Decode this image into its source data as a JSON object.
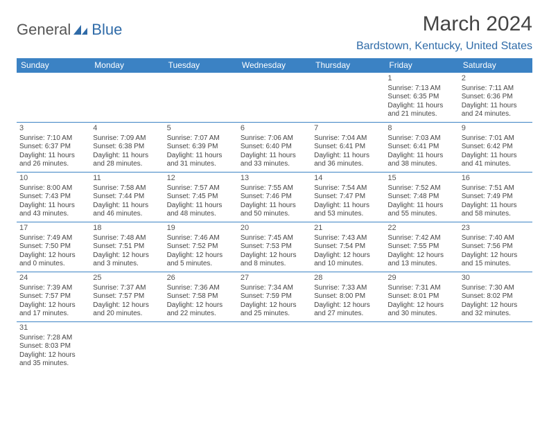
{
  "logo": {
    "general": "General",
    "blue": "Blue"
  },
  "title": "March 2024",
  "location": "Bardstown, Kentucky, United States",
  "day_headers": [
    "Sunday",
    "Monday",
    "Tuesday",
    "Wednesday",
    "Thursday",
    "Friday",
    "Saturday"
  ],
  "header_bg": "#3b82c4",
  "header_fg": "#ffffff",
  "border_color": "#3b82c4",
  "text_color": "#444444",
  "location_color": "#2f6ba8",
  "first_weekday": 5,
  "num_days": 31,
  "days": {
    "1": {
      "sunrise": "7:13 AM",
      "sunset": "6:35 PM",
      "daylight": "11 hours and 21 minutes."
    },
    "2": {
      "sunrise": "7:11 AM",
      "sunset": "6:36 PM",
      "daylight": "11 hours and 24 minutes."
    },
    "3": {
      "sunrise": "7:10 AM",
      "sunset": "6:37 PM",
      "daylight": "11 hours and 26 minutes."
    },
    "4": {
      "sunrise": "7:09 AM",
      "sunset": "6:38 PM",
      "daylight": "11 hours and 28 minutes."
    },
    "5": {
      "sunrise": "7:07 AM",
      "sunset": "6:39 PM",
      "daylight": "11 hours and 31 minutes."
    },
    "6": {
      "sunrise": "7:06 AM",
      "sunset": "6:40 PM",
      "daylight": "11 hours and 33 minutes."
    },
    "7": {
      "sunrise": "7:04 AM",
      "sunset": "6:41 PM",
      "daylight": "11 hours and 36 minutes."
    },
    "8": {
      "sunrise": "7:03 AM",
      "sunset": "6:41 PM",
      "daylight": "11 hours and 38 minutes."
    },
    "9": {
      "sunrise": "7:01 AM",
      "sunset": "6:42 PM",
      "daylight": "11 hours and 41 minutes."
    },
    "10": {
      "sunrise": "8:00 AM",
      "sunset": "7:43 PM",
      "daylight": "11 hours and 43 minutes."
    },
    "11": {
      "sunrise": "7:58 AM",
      "sunset": "7:44 PM",
      "daylight": "11 hours and 46 minutes."
    },
    "12": {
      "sunrise": "7:57 AM",
      "sunset": "7:45 PM",
      "daylight": "11 hours and 48 minutes."
    },
    "13": {
      "sunrise": "7:55 AM",
      "sunset": "7:46 PM",
      "daylight": "11 hours and 50 minutes."
    },
    "14": {
      "sunrise": "7:54 AM",
      "sunset": "7:47 PM",
      "daylight": "11 hours and 53 minutes."
    },
    "15": {
      "sunrise": "7:52 AM",
      "sunset": "7:48 PM",
      "daylight": "11 hours and 55 minutes."
    },
    "16": {
      "sunrise": "7:51 AM",
      "sunset": "7:49 PM",
      "daylight": "11 hours and 58 minutes."
    },
    "17": {
      "sunrise": "7:49 AM",
      "sunset": "7:50 PM",
      "daylight": "12 hours and 0 minutes."
    },
    "18": {
      "sunrise": "7:48 AM",
      "sunset": "7:51 PM",
      "daylight": "12 hours and 3 minutes."
    },
    "19": {
      "sunrise": "7:46 AM",
      "sunset": "7:52 PM",
      "daylight": "12 hours and 5 minutes."
    },
    "20": {
      "sunrise": "7:45 AM",
      "sunset": "7:53 PM",
      "daylight": "12 hours and 8 minutes."
    },
    "21": {
      "sunrise": "7:43 AM",
      "sunset": "7:54 PM",
      "daylight": "12 hours and 10 minutes."
    },
    "22": {
      "sunrise": "7:42 AM",
      "sunset": "7:55 PM",
      "daylight": "12 hours and 13 minutes."
    },
    "23": {
      "sunrise": "7:40 AM",
      "sunset": "7:56 PM",
      "daylight": "12 hours and 15 minutes."
    },
    "24": {
      "sunrise": "7:39 AM",
      "sunset": "7:57 PM",
      "daylight": "12 hours and 17 minutes."
    },
    "25": {
      "sunrise": "7:37 AM",
      "sunset": "7:57 PM",
      "daylight": "12 hours and 20 minutes."
    },
    "26": {
      "sunrise": "7:36 AM",
      "sunset": "7:58 PM",
      "daylight": "12 hours and 22 minutes."
    },
    "27": {
      "sunrise": "7:34 AM",
      "sunset": "7:59 PM",
      "daylight": "12 hours and 25 minutes."
    },
    "28": {
      "sunrise": "7:33 AM",
      "sunset": "8:00 PM",
      "daylight": "12 hours and 27 minutes."
    },
    "29": {
      "sunrise": "7:31 AM",
      "sunset": "8:01 PM",
      "daylight": "12 hours and 30 minutes."
    },
    "30": {
      "sunrise": "7:30 AM",
      "sunset": "8:02 PM",
      "daylight": "12 hours and 32 minutes."
    },
    "31": {
      "sunrise": "7:28 AM",
      "sunset": "8:03 PM",
      "daylight": "12 hours and 35 minutes."
    }
  },
  "labels": {
    "sunrise": "Sunrise: ",
    "sunset": "Sunset: ",
    "daylight": "Daylight: "
  }
}
